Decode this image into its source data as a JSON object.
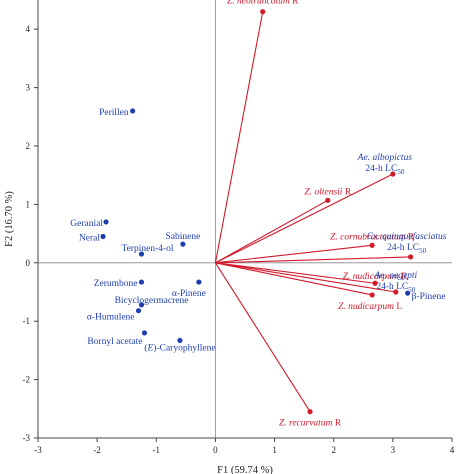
{
  "chart_data": {
    "type": "scatter",
    "xlabel": "F1 (59.74 %)",
    "ylabel": "F2 (16.70 %)",
    "xlim": [
      -3,
      4
    ],
    "ylim": [
      -3,
      4.5
    ],
    "x_ticks": [
      -3,
      -2,
      -1,
      0,
      1,
      2,
      3,
      4
    ],
    "y_ticks": [
      -3,
      -2,
      -1,
      0,
      1,
      2,
      3,
      4
    ],
    "x_tick_labels": [
      "-3",
      "-2",
      "-1",
      "0",
      "1",
      "2",
      "3",
      "4"
    ],
    "y_tick_labels": [
      "-3",
      "-2",
      "-1",
      "0",
      "1",
      "2",
      "3",
      "4"
    ],
    "grid": false,
    "colors": {
      "observations": "#1f3fb0",
      "variables": "#d11a2a",
      "axes": "#444444"
    },
    "observations": [
      {
        "name": "Perillen",
        "x": -1.4,
        "y": 2.6
      },
      {
        "name": "Geranial",
        "x": -1.85,
        "y": 0.7
      },
      {
        "name": "Neral",
        "x": -1.9,
        "y": 0.45
      },
      {
        "name": "Terpinen-4-ol",
        "x": -1.25,
        "y": 0.15
      },
      {
        "name": "Sabinene",
        "x": -0.55,
        "y": 0.32
      },
      {
        "name": "Zerumbone",
        "x": -1.25,
        "y": -0.33
      },
      {
        "name": "α-Pinene",
        "x": -0.28,
        "y": -0.33
      },
      {
        "name": "Bicyclogermacrene",
        "x": -1.25,
        "y": -0.72
      },
      {
        "name": "α-Humulene",
        "x": -1.3,
        "y": -0.82
      },
      {
        "name": "Bornyl acetate",
        "x": -1.2,
        "y": -1.2
      },
      {
        "name": "(E)-Caryophyllene",
        "x": -0.6,
        "y": -1.33
      },
      {
        "name": "β-Pinene",
        "x": 3.25,
        "y": -0.52
      }
    ],
    "variables": [
      {
        "name": "Z. neotruncatum R",
        "x": 0.8,
        "y": 4.3
      },
      {
        "name": "Z. oltensii R",
        "x": 1.9,
        "y": 1.07
      },
      {
        "name": "Z. cornubracteatum R",
        "x": 2.65,
        "y": 0.3
      },
      {
        "name": "Ae. albopictus 24-h LC50",
        "x": 3.0,
        "y": 1.52
      },
      {
        "name": "Cx. quinquefasciatus 24-h LC50",
        "x": 3.3,
        "y": 0.1
      },
      {
        "name": "Z. nudicarpum R",
        "x": 2.7,
        "y": -0.35
      },
      {
        "name": "Ae. aegypti 24-h LC50",
        "x": 3.05,
        "y": -0.5
      },
      {
        "name": "Z. nudicarpum L",
        "x": 2.65,
        "y": -0.55
      },
      {
        "name": "Z. recurvatum R",
        "x": 1.6,
        "y": -2.55
      }
    ]
  }
}
